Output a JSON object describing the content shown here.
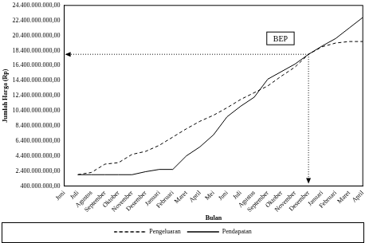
{
  "chart_data": {
    "type": "line",
    "x_label": "Bulan",
    "y_label": "Jumlah Harga (Rp)",
    "categories": [
      "Juni",
      "Juli",
      "Agustus",
      "September",
      "Oktober",
      "November",
      "Desember",
      "Januari",
      "Februari",
      "Maret",
      "April",
      "Mei",
      "Juni",
      "Juli",
      "Agustus",
      "September",
      "Oktober",
      "November",
      "Desember",
      "Januari",
      "Februari",
      "Maret",
      "April"
    ],
    "series": [
      {
        "name": "Pengeluaran",
        "color": "#000000",
        "line_style": "dashed",
        "values": [
          null,
          1900000000,
          2200000000,
          3300000000,
          3500000000,
          4600000000,
          5000000000,
          5800000000,
          6900000000,
          8000000000,
          9000000000,
          9800000000,
          10800000000,
          11900000000,
          12800000000,
          13700000000,
          15000000000,
          16200000000,
          17900000000,
          18900000000,
          19400000000,
          19600000000,
          19600000000
        ]
      },
      {
        "name": "Pendapatan",
        "color": "#000000",
        "line_style": "solid",
        "values": [
          null,
          1900000000,
          1900000000,
          1900000000,
          1900000000,
          1900000000,
          2300000000,
          2600000000,
          2600000000,
          4400000000,
          5600000000,
          7200000000,
          9600000000,
          11000000000,
          12200000000,
          14600000000,
          15600000000,
          16600000000,
          17900000000,
          19000000000,
          20000000000,
          21400000000,
          22800000000
        ]
      }
    ],
    "ylim": [
      400000000,
      24400000000
    ],
    "yticks": [
      {
        "value": 400000000,
        "label": "400.000.000,00"
      },
      {
        "value": 2400000000,
        "label": "2.400.000.000,00"
      },
      {
        "value": 4400000000,
        "label": "4.400.000.000,00"
      },
      {
        "value": 6400000000,
        "label": "6.400.000.000,00"
      },
      {
        "value": 8400000000,
        "label": "8.400.000.000,00"
      },
      {
        "value": 10400000000,
        "label": "10.400.000.000,00"
      },
      {
        "value": 12400000000,
        "label": "12.400.000.000,00"
      },
      {
        "value": 14400000000,
        "label": "14.400.000.000,00"
      },
      {
        "value": 16400000000,
        "label": "16.400.000.000,00"
      },
      {
        "value": 18400000000,
        "label": "18.400.000.000,00"
      },
      {
        "value": 20400000000,
        "label": "20.400.000.000,00"
      },
      {
        "value": 22400000000,
        "label": "22.400.000.000,00"
      },
      {
        "value": 24400000000,
        "label": "24.400.000.000,00"
      }
    ],
    "grid": false,
    "legend": "bottom",
    "annotations": [
      {
        "text": "BEP",
        "x": 18,
        "y": 17900000000
      }
    ]
  }
}
